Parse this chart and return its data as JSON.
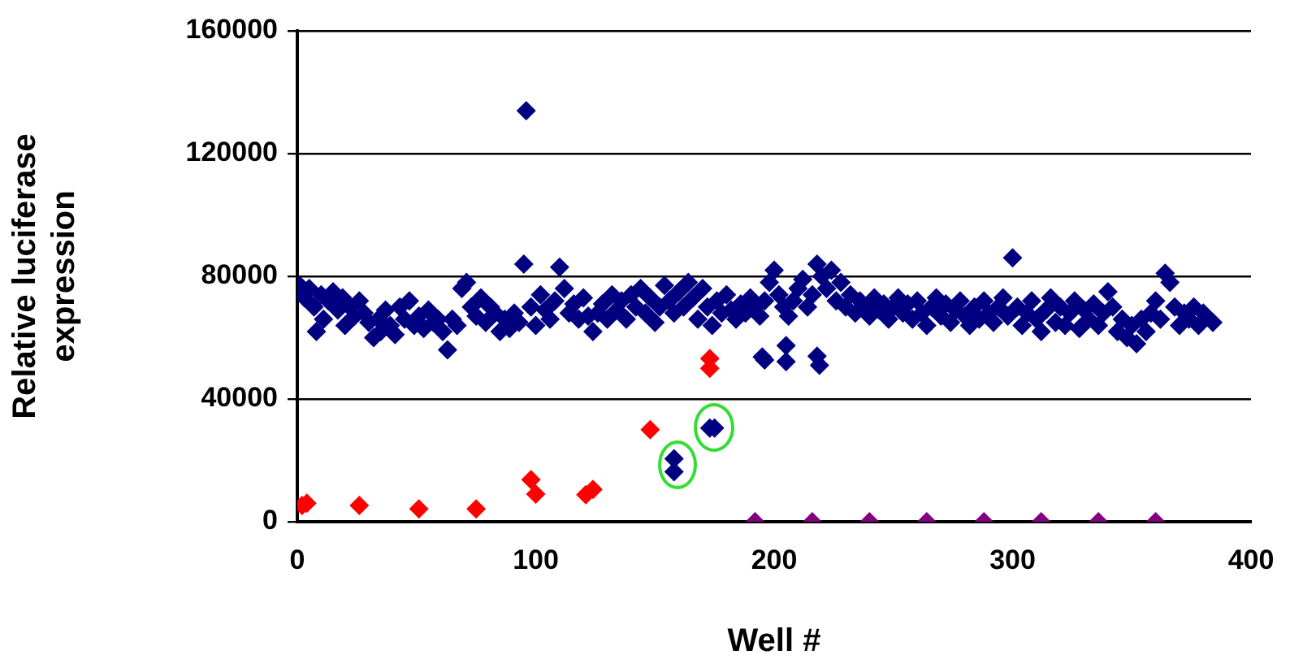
{
  "chart_data": {
    "type": "scatter",
    "xlabel": "Well #",
    "ylabel": "Relative luciferase expression",
    "xlim": [
      0,
      400
    ],
    "xticks": [
      0,
      100,
      200,
      300,
      400
    ],
    "ylim": [
      0,
      160000
    ],
    "yticks": [
      0,
      40000,
      80000,
      120000,
      160000
    ],
    "grid": "y",
    "legend": false,
    "marker": "diamond",
    "series": [
      {
        "color": "#000080",
        "x": [
          1,
          3,
          5,
          7,
          8,
          10,
          11,
          13,
          15,
          17,
          19,
          20,
          22,
          24,
          26,
          28,
          30,
          32,
          34,
          35,
          37,
          39,
          41,
          43,
          45,
          47,
          49,
          51,
          53,
          55,
          57,
          59,
          61,
          63,
          65,
          67,
          69,
          71,
          73,
          75,
          77,
          79,
          81,
          83,
          85,
          87,
          89,
          91,
          93,
          95,
          96,
          98,
          100,
          102,
          104,
          106,
          108,
          110,
          112,
          114,
          116,
          118,
          120,
          122,
          124,
          126,
          128,
          130,
          132,
          134,
          136,
          138,
          140,
          142,
          144,
          146,
          148,
          150,
          152,
          154,
          156,
          158,
          160,
          162,
          164,
          166,
          168,
          170,
          172,
          174,
          176,
          178,
          180,
          182,
          184,
          186,
          188,
          190,
          192,
          194,
          196,
          198,
          200,
          202,
          204,
          206,
          208,
          210,
          212,
          214,
          216,
          218,
          220,
          222,
          224,
          226,
          228,
          230,
          232,
          234,
          236,
          238,
          240,
          242,
          244,
          246,
          248,
          250,
          252,
          254,
          256,
          258,
          260,
          262,
          264,
          266,
          268,
          270,
          272,
          274,
          276,
          278,
          280,
          282,
          284,
          286,
          288,
          290,
          292,
          294,
          296,
          298,
          300,
          302,
          304,
          306,
          308,
          310,
          312,
          314,
          316,
          318,
          320,
          322,
          324,
          326,
          328,
          330,
          332,
          334,
          336,
          338,
          340,
          342,
          344,
          346,
          348,
          350,
          352,
          354,
          356,
          358,
          360,
          362,
          364,
          366,
          368,
          370,
          372,
          374,
          376,
          378,
          380,
          384,
          195,
          196,
          205,
          205,
          218,
          219,
          158,
          158,
          173,
          175
        ],
        "values": [
          77000,
          73000,
          76000,
          70000,
          62000,
          74000,
          66000,
          72000,
          75000,
          69000,
          73000,
          64000,
          70000,
          67000,
          72000,
          68000,
          65000,
          60000,
          66000,
          62000,
          69000,
          64000,
          61000,
          70000,
          66000,
          72000,
          64000,
          67000,
          63000,
          69000,
          65000,
          66000,
          62000,
          56000,
          66000,
          64000,
          76000,
          78000,
          70000,
          67000,
          73000,
          65000,
          70000,
          68000,
          62000,
          66000,
          63000,
          68000,
          65000,
          84000,
          134000,
          70000,
          64000,
          74000,
          69000,
          66000,
          72000,
          83000,
          76000,
          68000,
          71000,
          66000,
          73000,
          67000,
          62000,
          68000,
          71000,
          66000,
          74000,
          69000,
          72000,
          66000,
          74000,
          70000,
          76000,
          68000,
          73000,
          65000,
          70000,
          77000,
          72000,
          68000,
          75000,
          70000,
          78000,
          73000,
          66000,
          76000,
          70000,
          64000,
          72000,
          68000,
          74000,
          69000,
          66000,
          71000,
          68000,
          73000,
          70000,
          67000,
          72000,
          78000,
          82000,
          74000,
          70000,
          67000,
          72000,
          76000,
          79000,
          70000,
          74000,
          84000,
          80000,
          76000,
          82000,
          72000,
          78000,
          70000,
          74000,
          68000,
          72000,
          70000,
          67000,
          73000,
          69000,
          71000,
          66000,
          70000,
          73000,
          68000,
          71000,
          66000,
          72000,
          68000,
          64000,
          70000,
          73000,
          67000,
          71000,
          65000,
          69000,
          72000,
          67000,
          64000,
          70000,
          66000,
          72000,
          68000,
          65000,
          70000,
          73000,
          67000,
          86000,
          70000,
          64000,
          68000,
          72000,
          66000,
          62000,
          69000,
          73000,
          65000,
          70000,
          64000,
          68000,
          72000,
          63000,
          69000,
          66000,
          71000,
          64000,
          68000,
          75000,
          70000,
          62000,
          66000,
          60000,
          64000,
          58000,
          66000,
          62000,
          68000,
          72000,
          66000,
          81000,
          78000,
          70000,
          64000,
          68000,
          66000,
          70000,
          64000,
          68000,
          65000,
          53700,
          52700,
          57400,
          52200,
          54000,
          51000,
          20500,
          16300,
          30500,
          30500
        ]
      },
      {
        "color": "#ff0000",
        "x": [
          2,
          4,
          26,
          51,
          75,
          98,
          100,
          121,
          124,
          148,
          173,
          173
        ],
        "values": [
          5300,
          6000,
          5300,
          4200,
          4200,
          13700,
          9000,
          8800,
          10500,
          30000,
          53200,
          50000
        ]
      },
      {
        "color": "#800080",
        "x": [
          192,
          216,
          240,
          264,
          288,
          312,
          336,
          360
        ],
        "values": [
          0,
          0,
          0,
          0,
          0,
          0,
          0,
          0
        ]
      }
    ]
  }
}
